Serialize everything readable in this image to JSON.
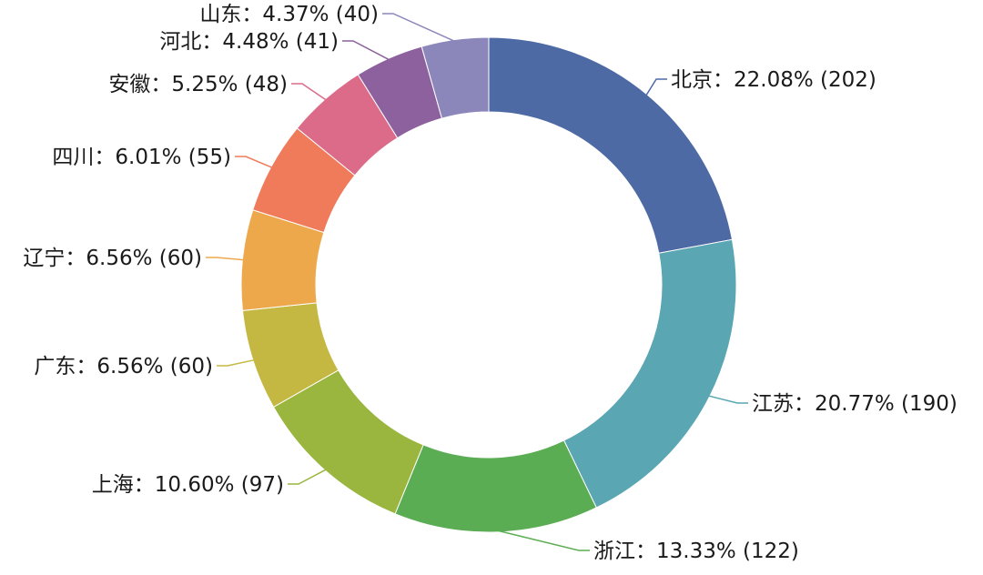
{
  "chart_data": {
    "type": "pie",
    "variant": "donut",
    "legend": "none",
    "slices": [
      {
        "name": "北京",
        "percent": "22.08%",
        "value": 202,
        "color": "#4e6aa5",
        "label": "北京：22.08% (202)"
      },
      {
        "name": "江苏",
        "percent": "20.77%",
        "value": 190,
        "color": "#5aa6b2",
        "label": "江苏：20.77% (190)"
      },
      {
        "name": "浙江",
        "percent": "13.33%",
        "value": 122,
        "color": "#5aad52",
        "label": "浙江：13.33% (122)"
      },
      {
        "name": "上海",
        "percent": "10.60%",
        "value": 97,
        "color": "#9ab63f",
        "label": "上海：10.60% (97)"
      },
      {
        "name": "广东",
        "percent": "6.56%",
        "value": 60,
        "color": "#c5b842",
        "label": "广东：6.56% (60)"
      },
      {
        "name": "辽宁",
        "percent": "6.56%",
        "value": 60,
        "color": "#eda84c",
        "label": "辽宁：6.56% (60)"
      },
      {
        "name": "四川",
        "percent": "6.01%",
        "value": 55,
        "color": "#ef7b5b",
        "label": "四川：6.01% (55)"
      },
      {
        "name": "安徽",
        "percent": "5.25%",
        "value": 48,
        "color": "#dc6b8a",
        "label": "安徽：5.25% (48)"
      },
      {
        "name": "河北",
        "percent": "4.48%",
        "value": 41,
        "color": "#8c619e",
        "label": "河北：4.48% (41)"
      },
      {
        "name": "山东",
        "percent": "4.37%",
        "value": 40,
        "color": "#8b87bb",
        "label": "山东：4.37% (40)"
      }
    ]
  }
}
